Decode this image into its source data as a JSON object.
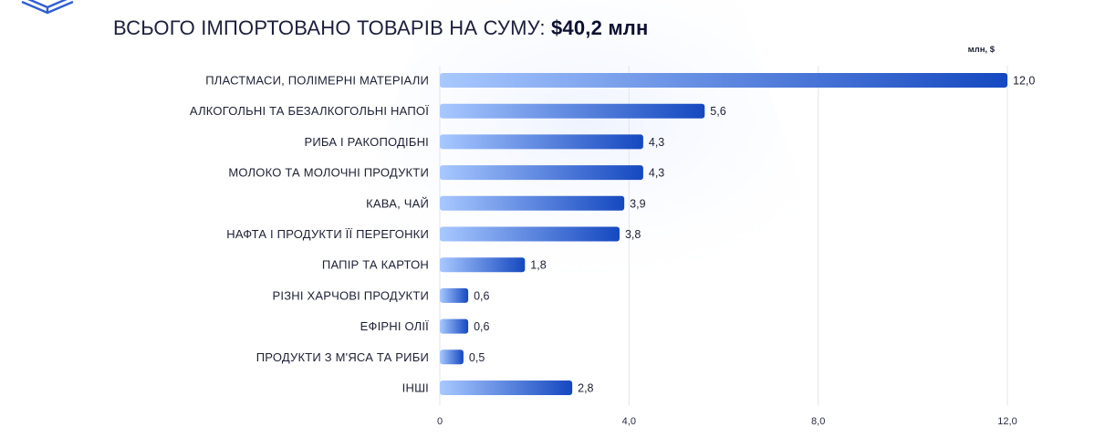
{
  "header": {
    "title_prefix": "ВСЬОГО ІМПОРТОВАНО ТОВАРІВ НА СУМУ:",
    "title_total": "$40,2 млн"
  },
  "colors": {
    "bar_start": "#a8c8ff",
    "bar_end": "#1548c0",
    "text": "#1d2035",
    "grid": "#e2e5ee",
    "logo": "#2f5fd0"
  },
  "logo": {
    "icon": "book-logo-icon"
  },
  "chart_data": {
    "type": "bar",
    "orientation": "horizontal",
    "title": "ВСЬОГО ІМПОРТОВАНО ТОВАРІВ НА СУМУ: $40,2 млн",
    "unit_label": "млн, $",
    "categories": [
      "ПЛАСТМАСИ, ПОЛІМЕРНІ МАТЕРІАЛИ",
      "АЛКОГОЛЬНІ ТА БЕЗАЛКОГОЛЬНІ НАПОЇ",
      "РИБА І РАКОПОДІБНІ",
      "МОЛОКО ТА МОЛОЧНІ ПРОДУКТИ",
      "КАВА, ЧАЙ",
      "НАФТА І ПРОДУКТИ ЇЇ ПЕРЕГОНКИ",
      "ПАПІР ТА КАРТОН",
      "РІЗНІ ХАРЧОВІ ПРОДУКТИ",
      "ЕФІРНІ ОЛІЇ",
      "ПРОДУКТИ З М'ЯСА ТА РИБИ",
      "ІНШІ"
    ],
    "values": [
      12.0,
      5.6,
      4.3,
      4.3,
      3.9,
      3.8,
      1.8,
      0.6,
      0.6,
      0.5,
      2.8
    ],
    "value_labels": [
      "12,0",
      "5,6",
      "4,3",
      "4,3",
      "3,9",
      "3,8",
      "1,8",
      "0,6",
      "0,6",
      "0,5",
      "2,8"
    ],
    "xlim": [
      0,
      12
    ],
    "ticks": [
      0,
      4,
      8,
      12
    ],
    "tick_labels": [
      "0",
      "4,0",
      "8,0",
      "12,0"
    ],
    "grid": true,
    "legend": "none"
  }
}
